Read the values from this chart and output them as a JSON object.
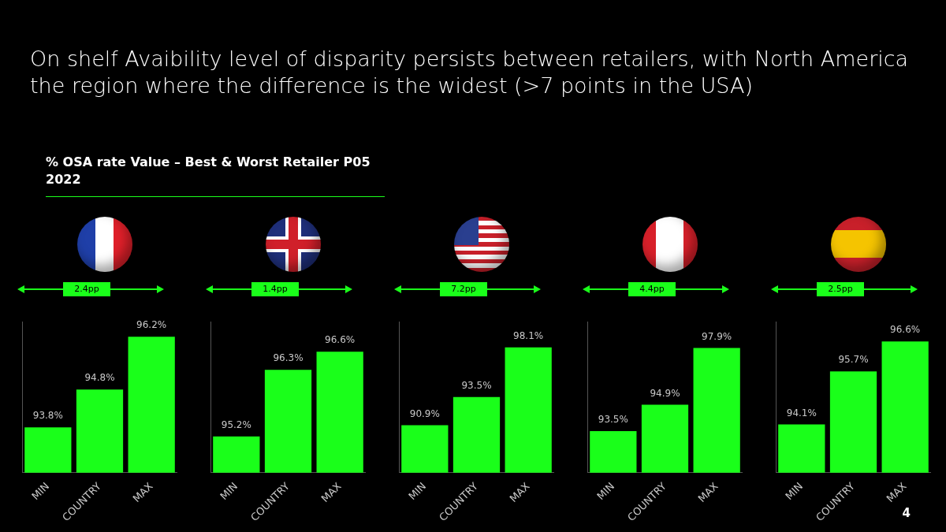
{
  "chart_data": [
    {
      "type": "bar",
      "title": "On shelf Avaibility level of disparity persists between retailers, with North America the region where the difference is the widest (>7 points in the USA)",
      "subtitle": "% OSA rate Value – Best & Worst Retailer P05 2022",
      "categories": [
        "MIN",
        "COUNTRY",
        "MAX"
      ],
      "values": [
        93.8,
        94.8,
        96.2
      ],
      "value_labels": [
        "93.8%",
        "94.8%",
        "96.2%"
      ],
      "color": "#1aff1a",
      "ylim": [
        92.6,
        96.6
      ],
      "tick_labels": "x",
      "annotations": [
        "2.4pp"
      ]
    },
    {
      "type": "bar",
      "categories": [
        "MIN",
        "COUNTRY",
        "MAX"
      ],
      "values": [
        95.2,
        96.3,
        96.6
      ],
      "value_labels": [
        "95.2%",
        "96.3%",
        "96.6%"
      ],
      "color": "#1aff1a",
      "ylim": [
        94.6,
        97.1
      ],
      "tick_labels": "x",
      "annotations": [
        "1.4pp"
      ]
    },
    {
      "type": "bar",
      "categories": [
        "MIN",
        "COUNTRY",
        "MAX"
      ],
      "values": [
        90.9,
        93.5,
        98.1
      ],
      "value_labels": [
        "90.9%",
        "93.5%",
        "98.1%"
      ],
      "color": "#1aff1a",
      "ylim": [
        86.5,
        100.5
      ],
      "tick_labels": "x",
      "annotations": [
        "7.2pp"
      ]
    },
    {
      "type": "bar",
      "categories": [
        "MIN",
        "COUNTRY",
        "MAX"
      ],
      "values": [
        93.5,
        94.9,
        97.9
      ],
      "value_labels": [
        "93.5%",
        "94.9%",
        "97.9%"
      ],
      "color": "#1aff1a",
      "ylim": [
        91.3,
        99.3
      ],
      "tick_labels": "x",
      "annotations": [
        "4.4pp"
      ]
    },
    {
      "type": "bar",
      "categories": [
        "MIN",
        "COUNTRY",
        "MAX"
      ],
      "values": [
        94.1,
        95.7,
        96.6
      ],
      "value_labels": [
        "94.1%",
        "95.7%",
        "96.6%"
      ],
      "color": "#1aff1a",
      "ylim": [
        92.65,
        97.2
      ],
      "tick_labels": "x",
      "annotations": [
        "2.5pp",
        "4"
      ]
    }
  ]
}
